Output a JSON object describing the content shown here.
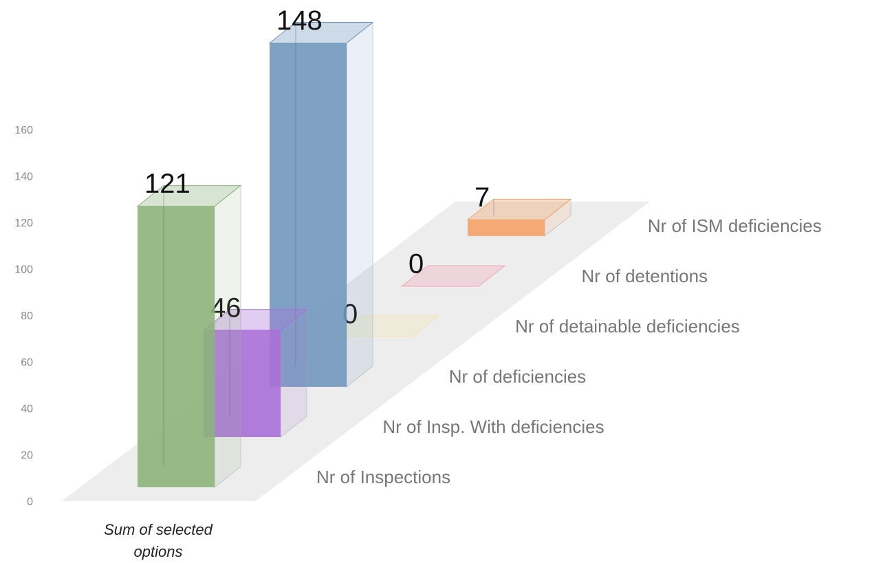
{
  "chart_data": {
    "type": "bar",
    "categories": [
      "Sum of selected options"
    ],
    "series": [
      {
        "name": "Nr of Inspections",
        "color": "#8db27a",
        "values": [
          121
        ]
      },
      {
        "name": "Nr of Insp. With deficiencies",
        "color": "#a96fd8",
        "values": [
          46
        ]
      },
      {
        "name": "Nr of deficiencies",
        "color": "#7197bd",
        "values": [
          148
        ]
      },
      {
        "name": "Nr of detainable deficiencies",
        "color": "#f3e7b8",
        "values": [
          0
        ]
      },
      {
        "name": "Nr of detentions",
        "color": "#f2a9bb",
        "values": [
          0
        ]
      },
      {
        "name": "Nr of ISM deficiencies",
        "color": "#f4a168",
        "values": [
          7
        ]
      }
    ],
    "ylim": [
      0,
      160
    ],
    "yticks": [
      0,
      20,
      40,
      60,
      80,
      100,
      120,
      140,
      160
    ],
    "grid": false
  }
}
